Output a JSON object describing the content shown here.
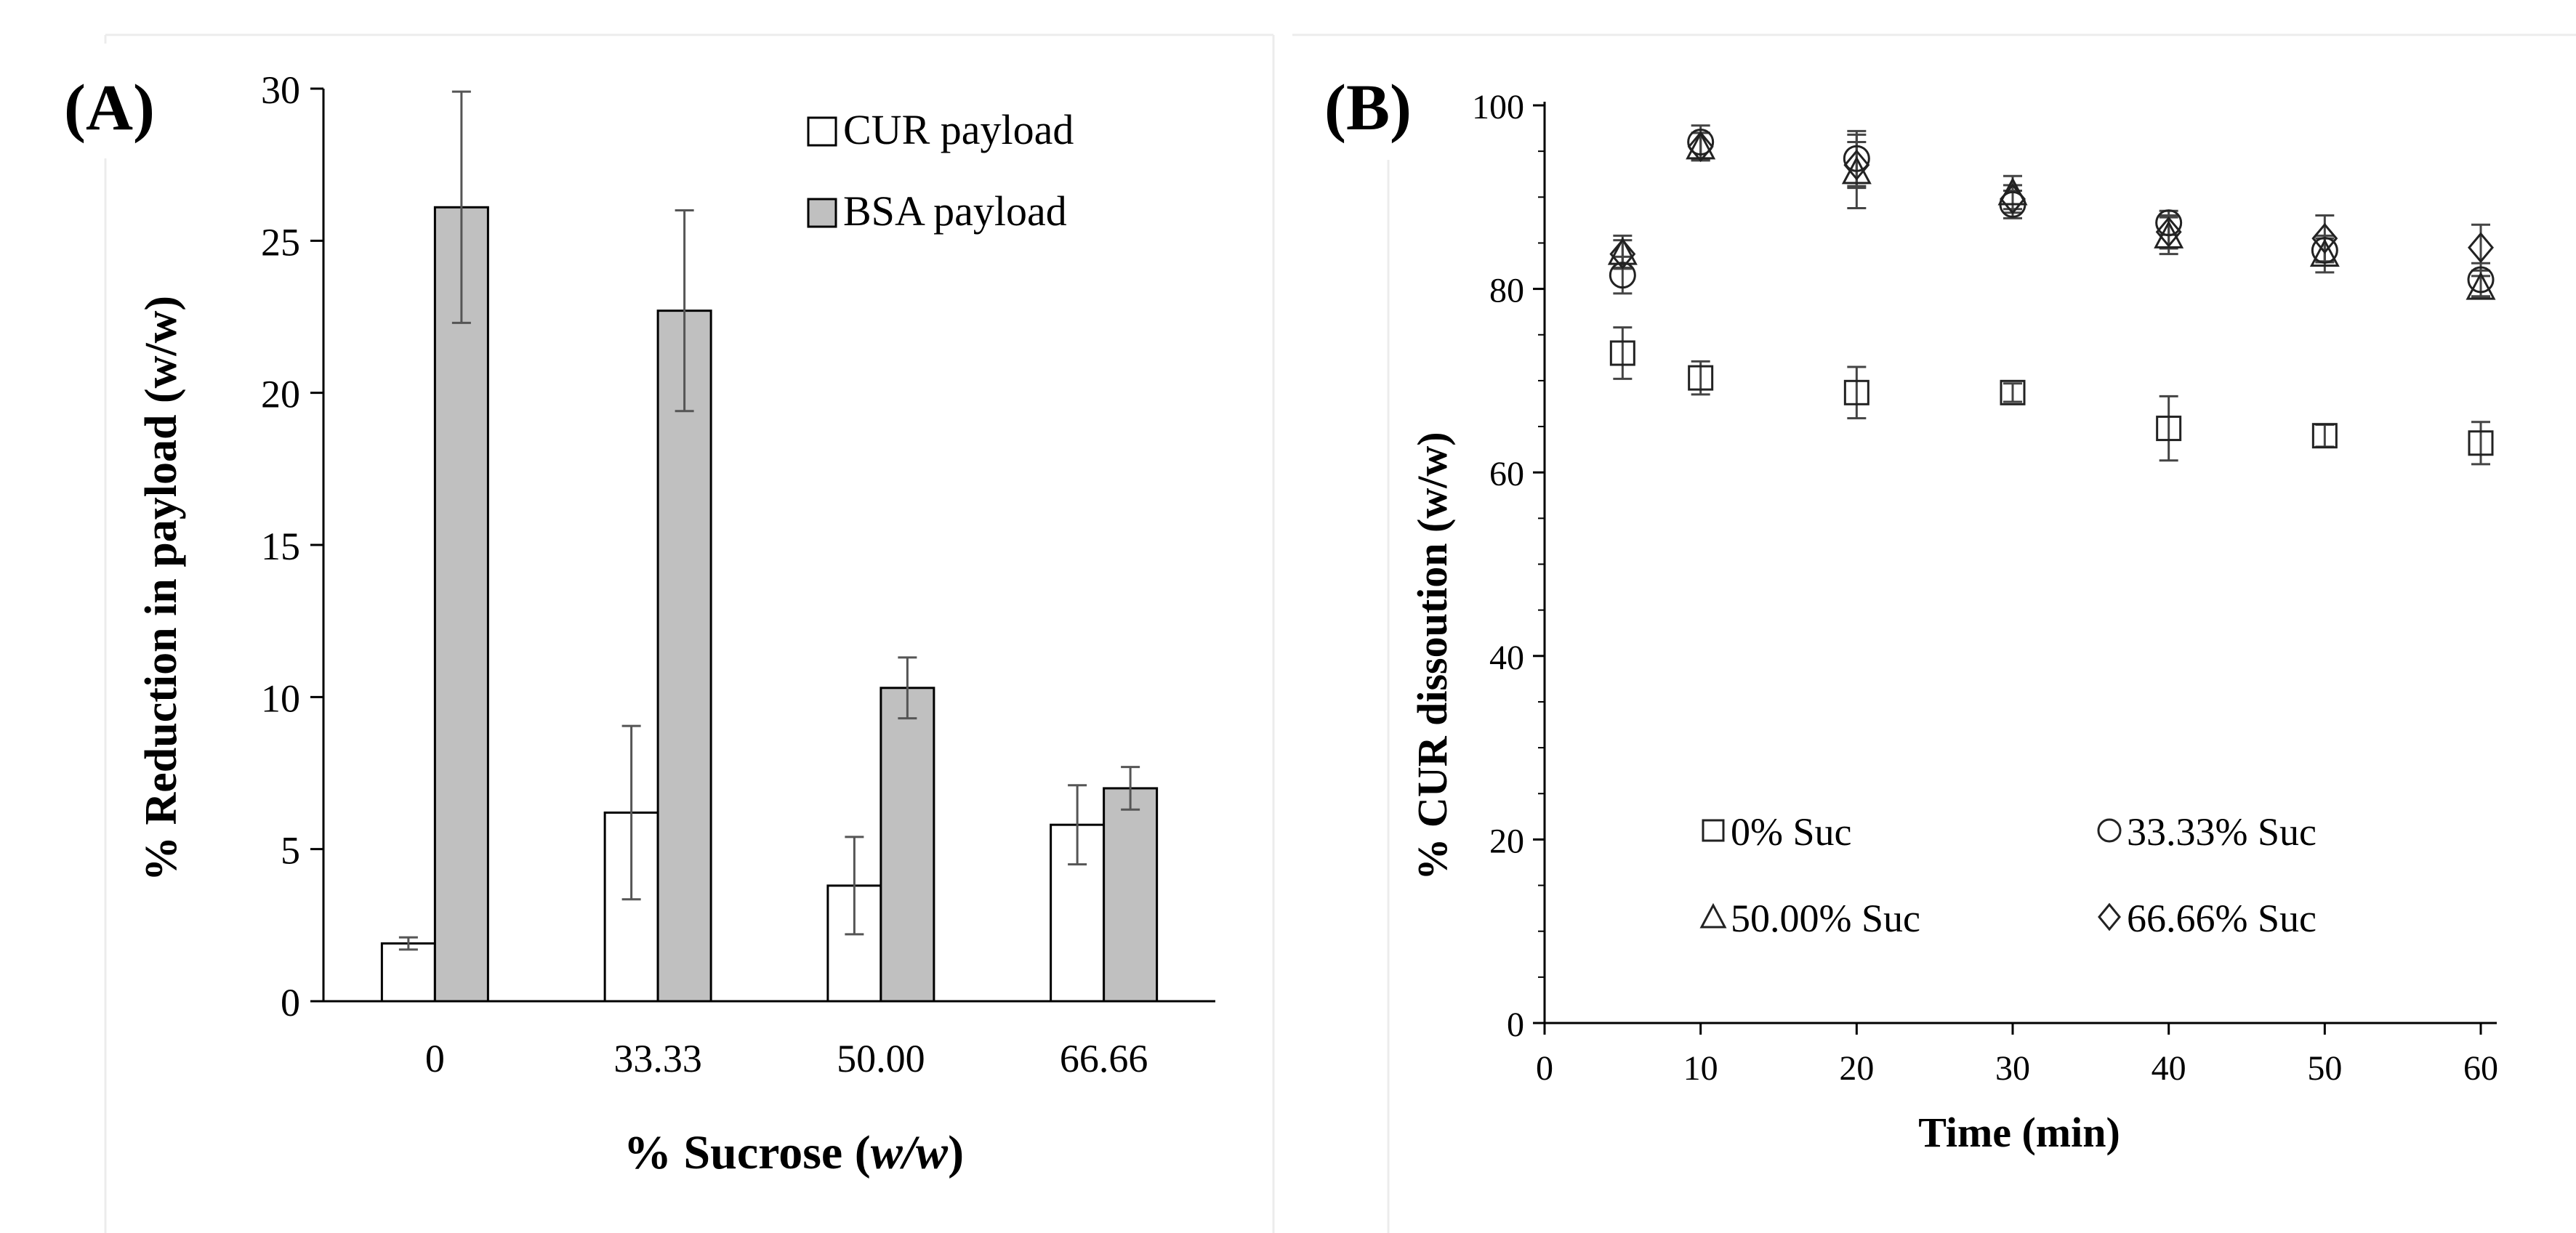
{
  "panels": {
    "a_label": "(A)",
    "b_label": "(B)"
  },
  "chart_data": [
    {
      "type": "bar",
      "panel": "A",
      "title": "",
      "xlabel_prefix": "% Sucrose (",
      "xlabel_italic": "w/w",
      "xlabel_suffix": ")",
      "ylabel": "% Reduction in payload  (w/w)",
      "categories": [
        "0",
        "33.33",
        "50.00",
        "66.66"
      ],
      "ylim": [
        0,
        30
      ],
      "yticks": [
        "0",
        "5",
        "10",
        "15",
        "20",
        "25",
        "30"
      ],
      "legend_position": "top-right",
      "series": [
        {
          "name": "CUR payload",
          "color": "#ffffff",
          "values": [
            1.9,
            6.2,
            3.8,
            5.8
          ],
          "errors": [
            0.2,
            2.85,
            1.6,
            1.3
          ]
        },
        {
          "name": "BSA payload",
          "color": "#c0c0c0",
          "values": [
            26.1,
            22.7,
            10.3,
            7.0
          ],
          "errors": [
            3.8,
            3.3,
            1.0,
            0.7
          ]
        }
      ]
    },
    {
      "type": "scatter",
      "panel": "B",
      "title": "",
      "xlabel": "Time (min)",
      "ylabel": "% CUR dissoution (w/w)",
      "xlim": [
        0,
        60
      ],
      "ylim": [
        0,
        100
      ],
      "xticks": [
        "0",
        "10",
        "20",
        "30",
        "40",
        "50",
        "60"
      ],
      "yticks": [
        "0",
        "20",
        "40",
        "60",
        "80",
        "100"
      ],
      "legend_position": "bottom",
      "series": [
        {
          "name": "0% Suc",
          "marker": "square",
          "x": [
            5,
            10,
            20,
            30,
            40,
            50,
            60
          ],
          "y": [
            73,
            70.3,
            68.7,
            68.7,
            64.8,
            64,
            63.2
          ],
          "errors": [
            2.8,
            1.8,
            2.8,
            1.0,
            3.5,
            1.2,
            2.3
          ]
        },
        {
          "name": "33.33% Suc",
          "marker": "circle",
          "x": [
            5,
            10,
            20,
            30,
            40,
            50,
            60
          ],
          "y": [
            81.5,
            96,
            94.2,
            89.2,
            87.2,
            84.2,
            81
          ],
          "errors": [
            2.0,
            1.8,
            3.0,
            1.5,
            1.3,
            1.3,
            1.8
          ]
        },
        {
          "name": "50.00% Suc",
          "marker": "triangle",
          "x": [
            5,
            10,
            20,
            30,
            40,
            50,
            60
          ],
          "y": [
            84,
            95.5,
            92.8,
            90.5,
            85.8,
            83.8,
            80.2
          ],
          "errors": [
            1.8,
            1.5,
            4.0,
            1.8,
            2.0,
            2.0,
            1.2
          ]
        },
        {
          "name": "66.66% Suc",
          "marker": "diamond",
          "x": [
            5,
            10,
            20,
            30,
            40,
            50,
            60
          ],
          "y": [
            83.8,
            95.5,
            93.5,
            89.8,
            86.2,
            85.5,
            84.5
          ],
          "errors": [
            1.5,
            1.5,
            2.5,
            1.5,
            1.8,
            2.5,
            2.5
          ]
        }
      ]
    }
  ]
}
